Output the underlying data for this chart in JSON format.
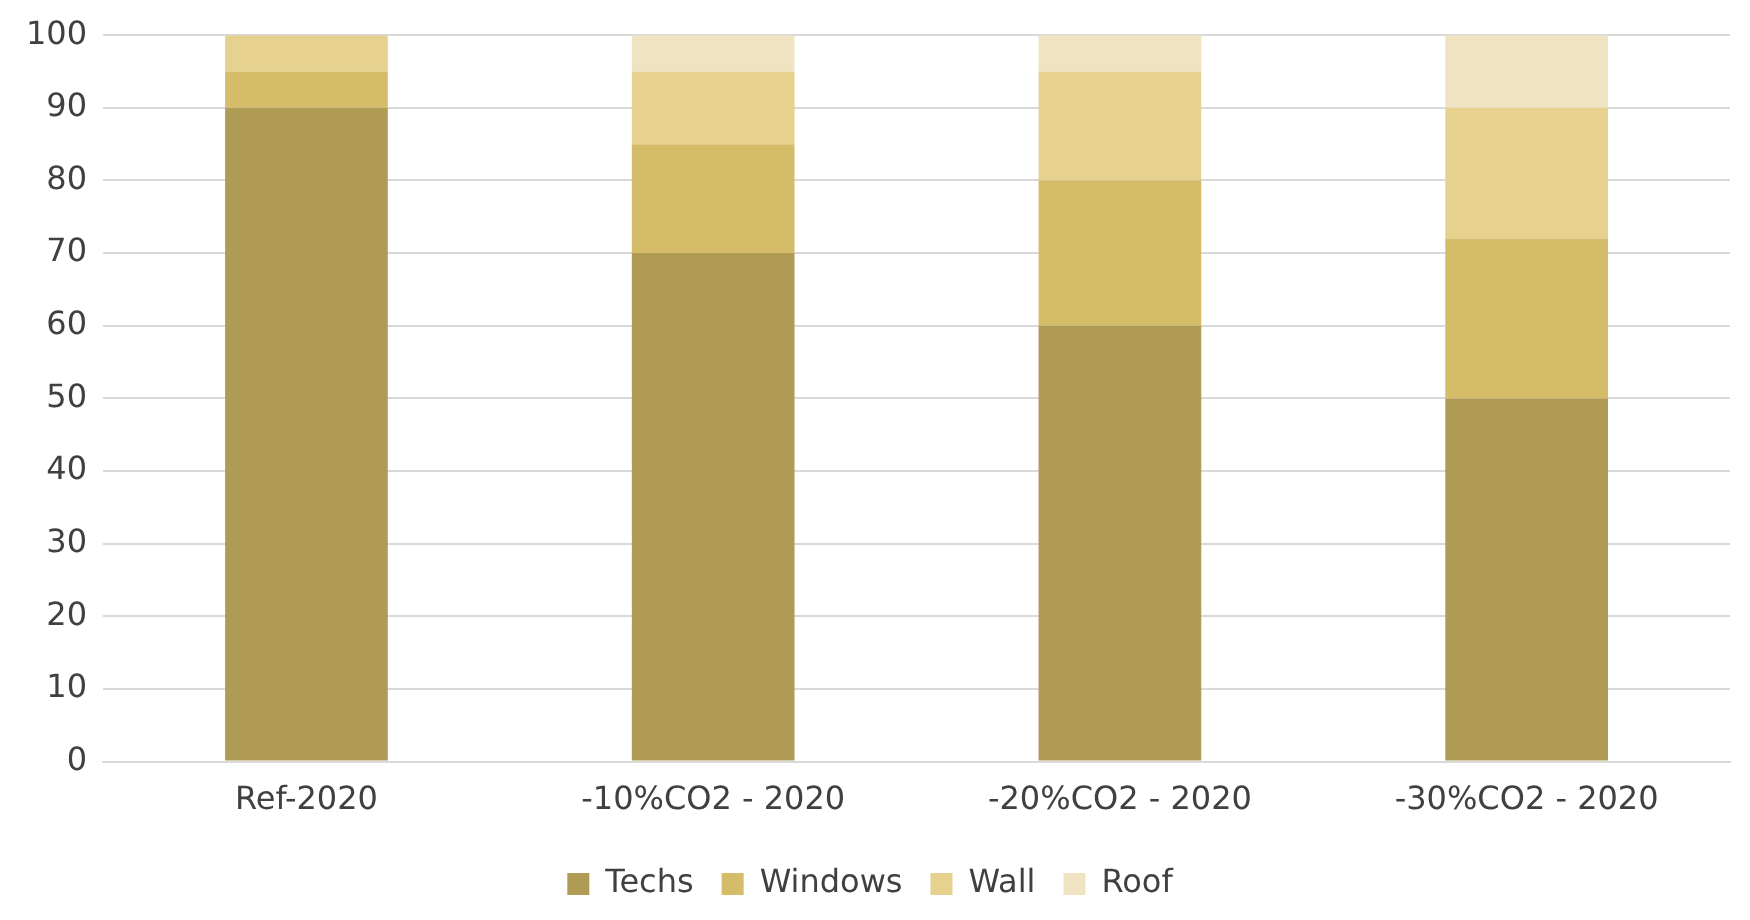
{
  "chart_data": {
    "type": "bar",
    "stacked": true,
    "categories": [
      "Ref-2020",
      "-10%CO2 - 2020",
      "-20%CO2 - 2020",
      "-30%CO2 - 2020"
    ],
    "series": [
      {
        "name": "Techs",
        "color": "#b09b55",
        "values": [
          90,
          70,
          60,
          50
        ]
      },
      {
        "name": "Windows",
        "color": "#d4bc69",
        "values": [
          5,
          15,
          20,
          22
        ]
      },
      {
        "name": "Wall",
        "color": "#e6d18f",
        "values": [
          5,
          10,
          15,
          18
        ]
      },
      {
        "name": "Roof",
        "color": "#efe3c1",
        "values": [
          0,
          5,
          5,
          10
        ]
      }
    ],
    "ylim": [
      0,
      100
    ],
    "yticks": [
      0,
      10,
      20,
      30,
      40,
      50,
      60,
      70,
      80,
      90,
      100
    ],
    "grid": "y",
    "legend": "bottom"
  }
}
